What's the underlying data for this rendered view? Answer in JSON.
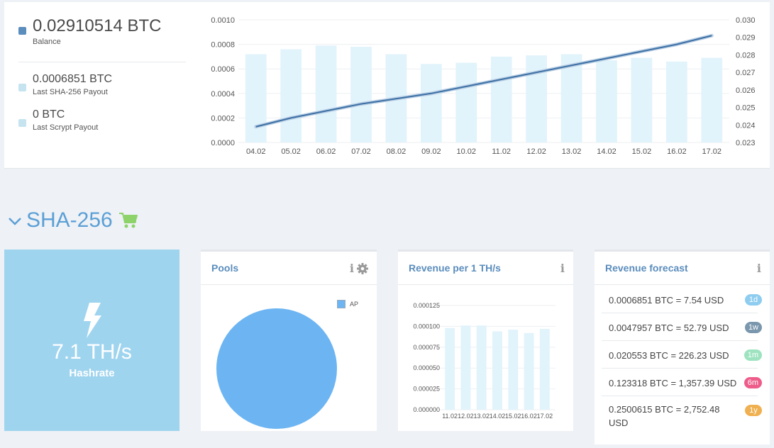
{
  "balance": {
    "main_value": "0.02910514 BTC",
    "main_label": "Balance",
    "sha_value": "0.0006851 BTC",
    "sha_label": "Last SHA-256 Payout",
    "scrypt_value": "0 BTC",
    "scrypt_label": "Last Scrypt Payout"
  },
  "colors": {
    "balance_square": "#5b8dbd",
    "payout_square": "#c5e4f0",
    "bar": "#e1f3fb",
    "line": "#3d6fa5",
    "hashrate_card": "#9fd4ef",
    "pie": "#6db5f2",
    "section_title": "#5b9fd6",
    "cart": "#8dd36a"
  },
  "chart_data": [
    {
      "type": "bar+line",
      "categories": [
        "04.02",
        "05.02",
        "06.02",
        "07.02",
        "08.02",
        "09.02",
        "10.02",
        "11.02",
        "12.02",
        "13.02",
        "14.02",
        "15.02",
        "16.02",
        "17.02"
      ],
      "series": [
        {
          "axis": "left",
          "type": "bar",
          "values": [
            0.00072,
            0.00076,
            0.00079,
            0.00078,
            0.00072,
            0.00064,
            0.00065,
            0.0007,
            0.00071,
            0.00072,
            0.00067,
            0.00069,
            0.00066,
            0.00069
          ]
        },
        {
          "axis": "right",
          "type": "line",
          "values": [
            0.0239,
            0.0244,
            0.0248,
            0.0252,
            0.0255,
            0.0258,
            0.0262,
            0.0266,
            0.027,
            0.0274,
            0.0278,
            0.0282,
            0.0286,
            0.0291
          ]
        }
      ],
      "y_left_ticks": [
        "0.0000",
        "0.0002",
        "0.0004",
        "0.0006",
        "0.0008",
        "0.0010"
      ],
      "y_right_ticks": [
        "0.023",
        "0.024",
        "0.025",
        "0.026",
        "0.027",
        "0.028",
        "0.029",
        "0.030"
      ],
      "ylim_left": [
        0,
        0.001
      ],
      "ylim_right": [
        0.023,
        0.03
      ],
      "grid": true
    },
    {
      "type": "bar",
      "categories": [
        "11.02",
        "12.02",
        "13.02",
        "14.02",
        "15.02",
        "16.02",
        "17.02"
      ],
      "values": [
        9.8e-05,
        0.000101,
        0.000101,
        9.4e-05,
        9.6e-05,
        9.2e-05,
        9.7e-05
      ],
      "y_ticks": [
        "0.000000",
        "0.000025",
        "0.000050",
        "0.000075",
        "0.000100",
        "0.000125"
      ],
      "ylim": [
        0,
        0.000125
      ],
      "grid": true
    }
  ],
  "section": {
    "title": "SHA-256"
  },
  "hashrate": {
    "value": "7.1 TH/s",
    "label": "Hashrate"
  },
  "pools": {
    "title": "Pools",
    "legend": "AP"
  },
  "revenue": {
    "title": "Revenue per 1 TH/s"
  },
  "forecast": {
    "title": "Revenue forecast",
    "rows": [
      {
        "text": "0.0006851 BTC = 7.54 USD",
        "badge": "1d",
        "color": "#8ecdf0"
      },
      {
        "text": "0.0047957 BTC = 52.79 USD",
        "badge": "1w",
        "color": "#7a97ad"
      },
      {
        "text": "0.020553 BTC = 226.23 USD",
        "badge": "1m",
        "color": "#9ee3c0"
      },
      {
        "text": "0.123318 BTC = 1,357.39 USD",
        "badge": "6m",
        "color": "#ee5c8a"
      },
      {
        "text": "0.2500615 BTC = 2,752.48 USD",
        "badge": "1y",
        "color": "#f0b050"
      }
    ]
  }
}
